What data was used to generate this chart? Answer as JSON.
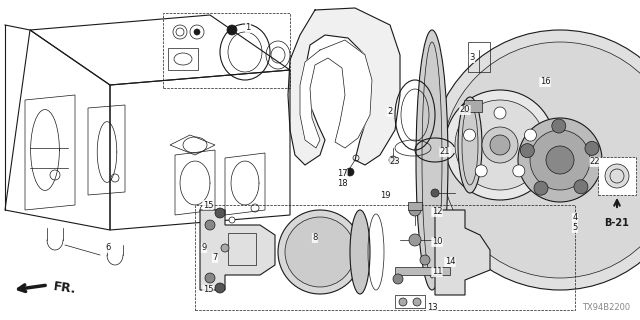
{
  "bg_color": "#ffffff",
  "line_color": "#1a1a1a",
  "gray_fill": "#e8e8e8",
  "mid_gray": "#bbbbbb",
  "dark_fill": "#555555",
  "diagram_code": "TX94B2200",
  "ref_code": "B-21",
  "fr_label": "FR.",
  "figsize": [
    6.4,
    3.2
  ],
  "dpi": 100,
  "lw_thin": 0.5,
  "lw_med": 0.8,
  "lw_thick": 1.2
}
